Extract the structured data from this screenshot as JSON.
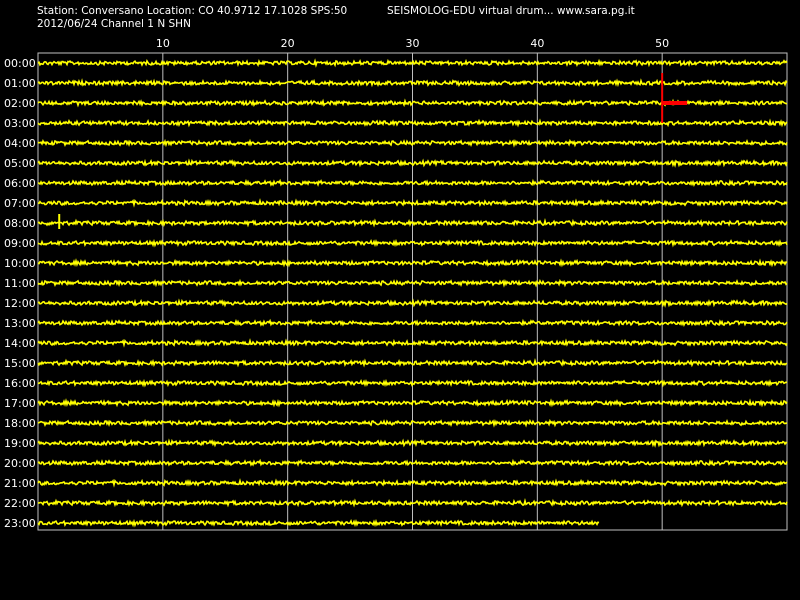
{
  "header": {
    "station_line": "Station: Conversano Location: CO 40.9712 17.1028 SPS:50",
    "date_line": "2012/06/24  Channel 1 N SHN",
    "right_title": "SEISMOLOG-EDU virtual drum... www.sara.pg.it"
  },
  "colors": {
    "background": "#000000",
    "trace": "#ffff00",
    "marker": "#ff0000",
    "text": "#ffffff",
    "grid": "#bfbfbf"
  },
  "chart_data": {
    "type": "line",
    "xlim": [
      0,
      60
    ],
    "x_ticks": [
      10,
      20,
      30,
      40,
      50
    ],
    "rows": [
      "00:00",
      "01:00",
      "02:00",
      "03:00",
      "04:00",
      "05:00",
      "06:00",
      "07:00",
      "08:00",
      "09:00",
      "10:00",
      "11:00",
      "12:00",
      "13:00",
      "14:00",
      "15:00",
      "16:00",
      "17:00",
      "18:00",
      "19:00",
      "20:00",
      "21:00",
      "22:00",
      "23:00"
    ],
    "last_row_end_minute": 45,
    "markers": [
      {
        "kind": "vertical",
        "minute": 50,
        "from_row": "01:00",
        "to_row": "03:00"
      },
      {
        "kind": "horizontal",
        "row": "02:00",
        "from_minute": 50,
        "to_minute": 52
      }
    ],
    "spikes": [
      {
        "row": "08:00",
        "minute": 1.7
      }
    ]
  }
}
